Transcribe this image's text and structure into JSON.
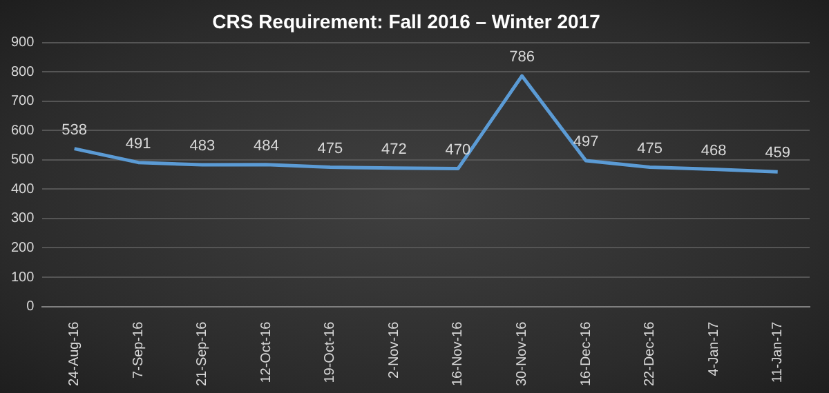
{
  "chart_data": {
    "type": "line",
    "title": "CRS Requirement: Fall 2016 – Winter 2017",
    "categories": [
      "24-Aug-16",
      "7-Sep-16",
      "21-Sep-16",
      "12-Oct-16",
      "19-Oct-16",
      "2-Nov-16",
      "16-Nov-16",
      "30-Nov-16",
      "16-Dec-16",
      "22-Dec-16",
      "4-Jan-17",
      "11-Jan-17"
    ],
    "series": [
      {
        "color": "#5b9bd5",
        "values": [
          538,
          491,
          483,
          484,
          475,
          472,
          470,
          786,
          497,
          475,
          468,
          459
        ]
      }
    ],
    "ylim": [
      0,
      900
    ],
    "yticks": [
      0,
      100,
      200,
      300,
      400,
      500,
      600,
      700,
      800,
      900
    ],
    "grid": "y",
    "data_labels": true,
    "marker": "none",
    "line_style": "solid",
    "legend": false
  }
}
